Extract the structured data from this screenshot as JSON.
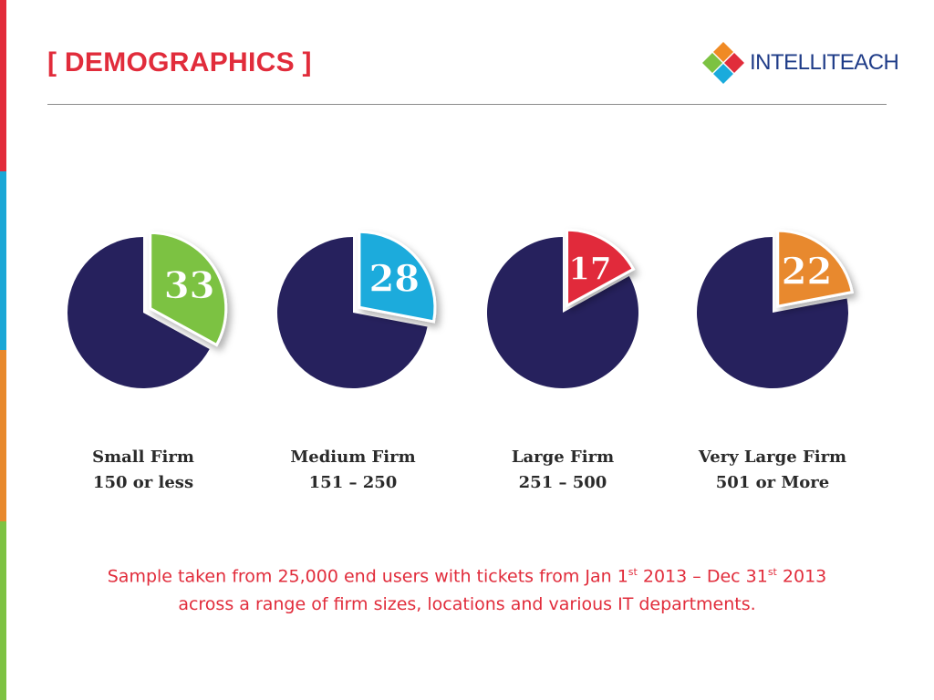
{
  "header": {
    "title": "[ DEMOGRAPHICS ]",
    "logo_text": "INTELLITEACH"
  },
  "chart_data": {
    "type": "pie",
    "charts": [
      {
        "value": 33,
        "name": "Small Firm",
        "range": "150 or less",
        "color": "#7cc242"
      },
      {
        "value": 28,
        "name": "Medium Firm",
        "range": "151 – 250",
        "color": "#1aabdc"
      },
      {
        "value": 17,
        "name": "Large Firm",
        "range": "251 – 500",
        "color": "#e12c3b"
      },
      {
        "value": 22,
        "name": "Very Large Firm",
        "range": "501 or More",
        "color": "#e8892d"
      }
    ],
    "base_color": "#26215d"
  },
  "caption": {
    "line1_a": "Sample taken from 25,000 end users with tickets from Jan 1",
    "sup1": "st",
    "line1_b": " 2013 – Dec 31",
    "sup2": "st",
    "line1_c": " 2013",
    "line2": "across a range of firm sizes, locations and various IT departments."
  },
  "colors": {
    "accent": "#e12c3b",
    "stripes": [
      "#e22b3a",
      "#1aa7d6",
      "#e8892d",
      "#7dc242"
    ]
  }
}
